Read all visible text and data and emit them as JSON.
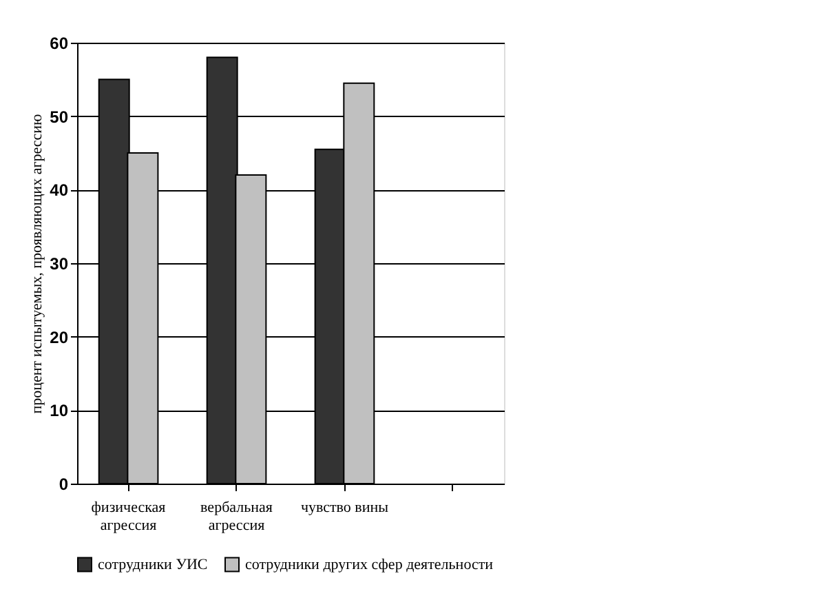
{
  "chart_data": {
    "type": "bar",
    "categories": [
      "физическая агрессия",
      "вербальная агрессия",
      "чувство вины",
      null
    ],
    "ylabel": "процент испытуемых, проявляющих агрессию",
    "series": [
      {
        "name": "сотрудники УИС",
        "color": "#333333",
        "values": [
          55,
          58,
          45.5,
          null
        ]
      },
      {
        "name": "сотрудники других сфер деятельности",
        "color": "#c0c0c0",
        "values": [
          45,
          42,
          54.5,
          null
        ]
      }
    ],
    "ylim": [
      0,
      60
    ],
    "yticks": [
      0,
      10,
      20,
      30,
      40,
      50,
      60
    ],
    "grid": "y",
    "legend": "bottom"
  }
}
